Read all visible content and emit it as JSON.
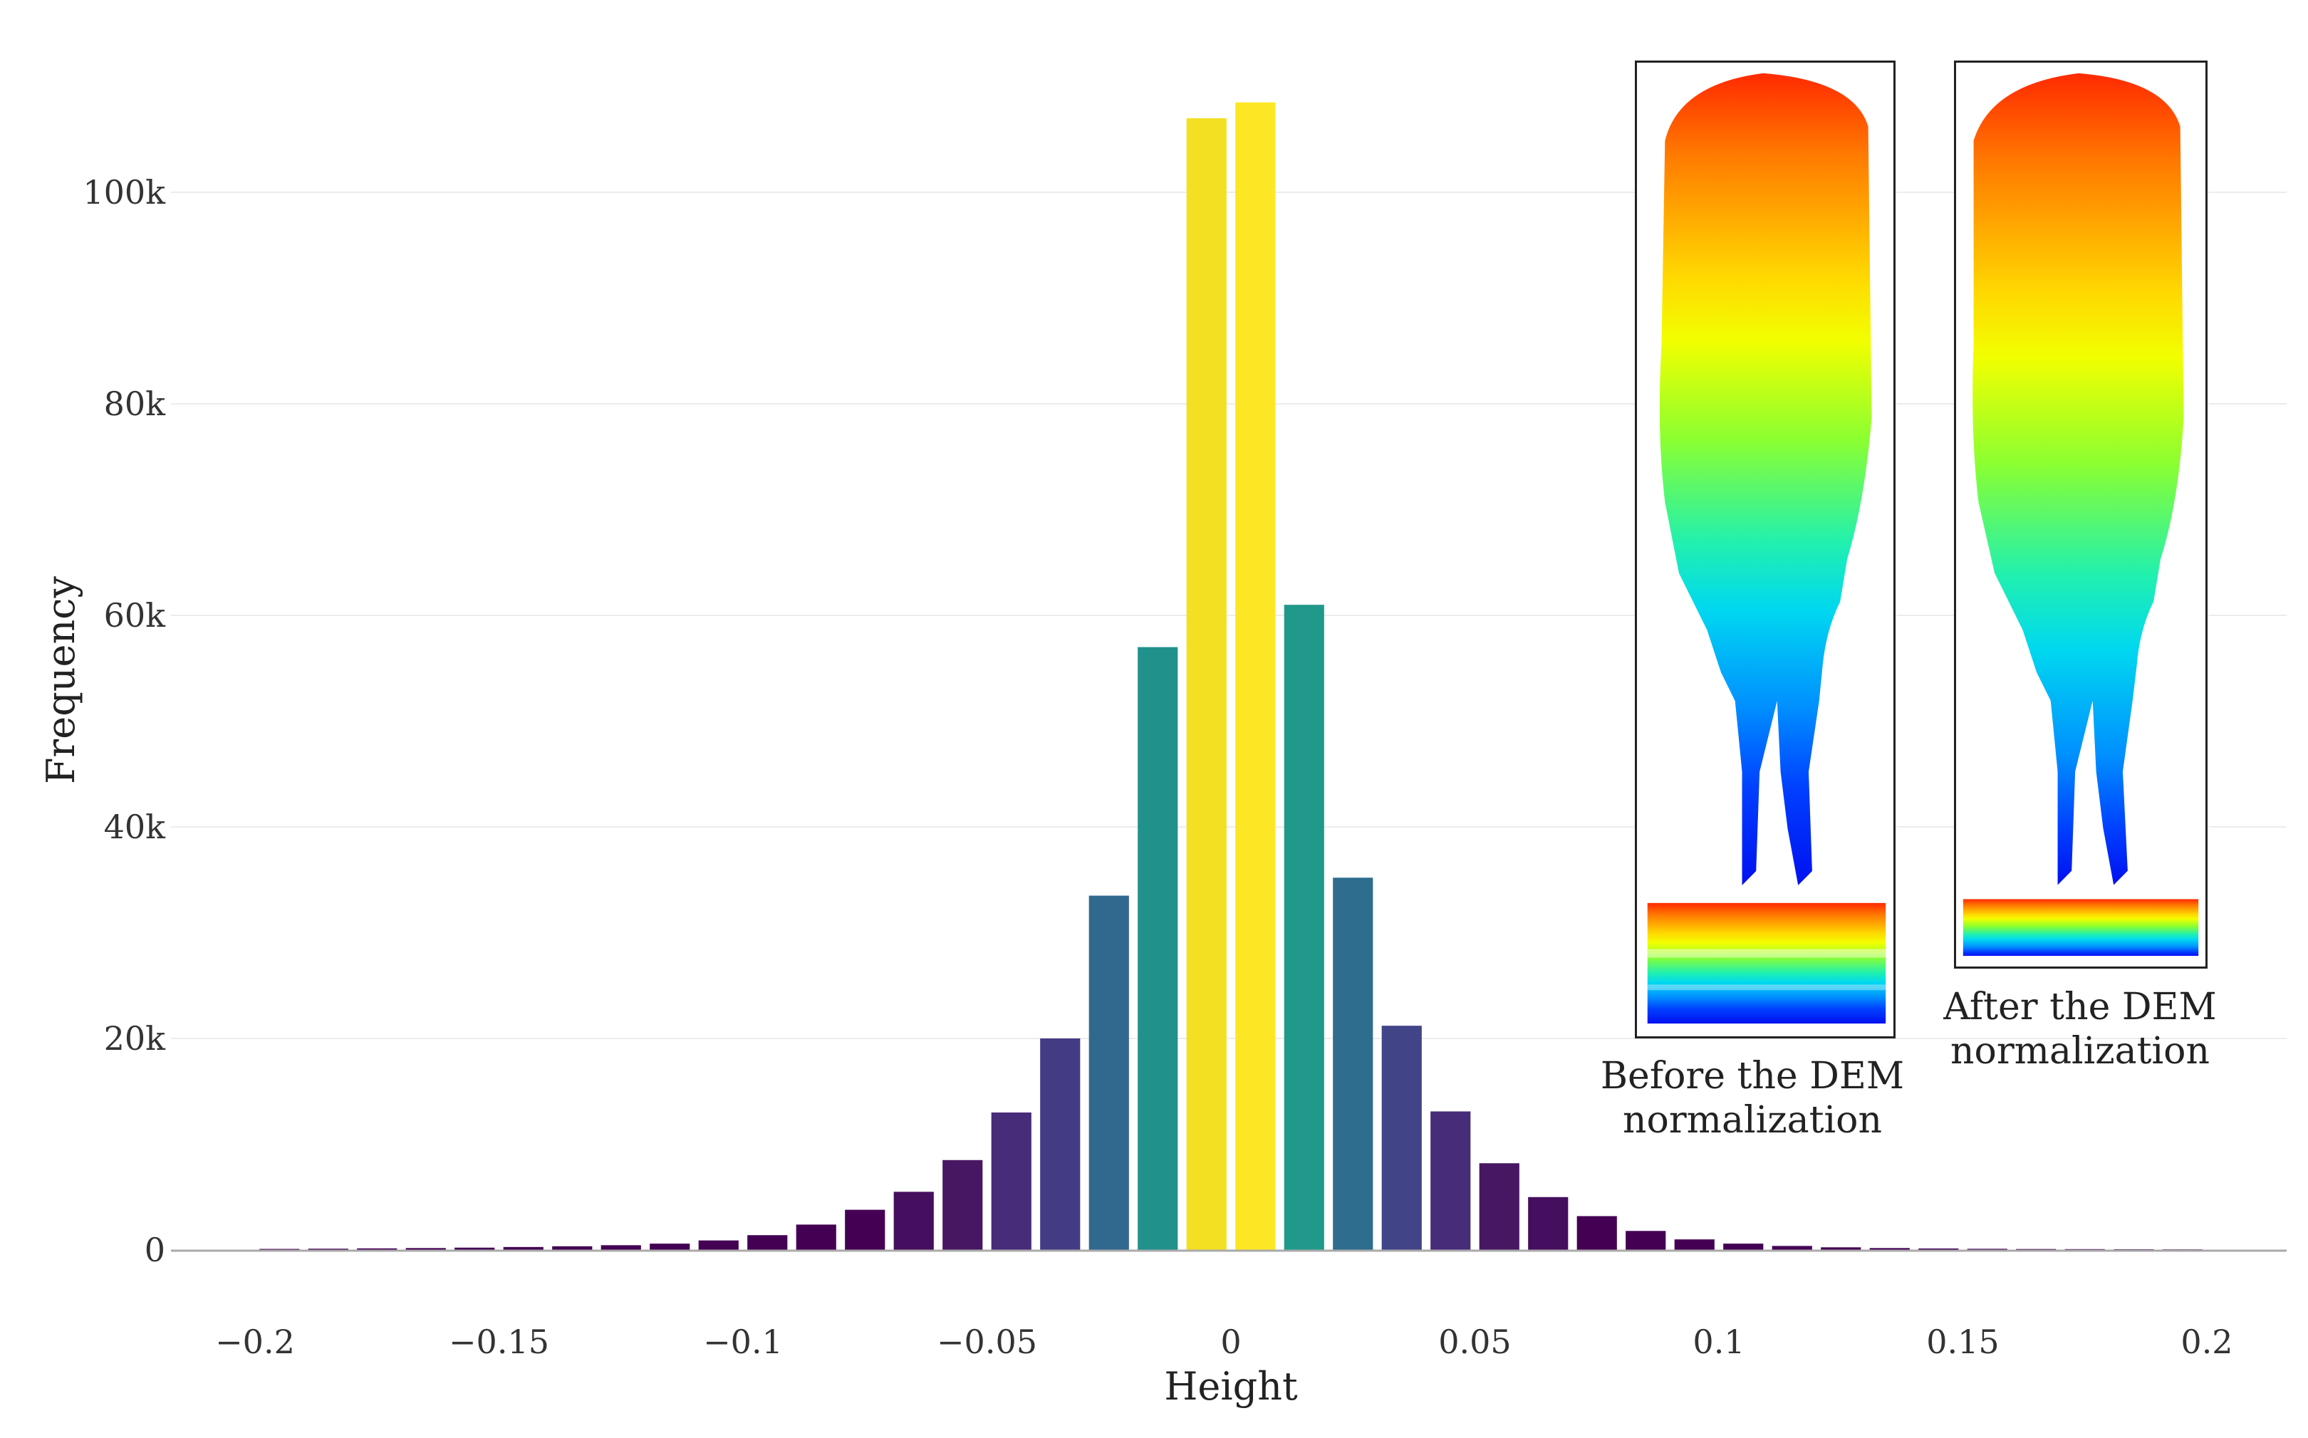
{
  "chart_data": {
    "type": "bar",
    "title": "",
    "xlabel": "Height",
    "ylabel": "Frequency",
    "xlim": [
      -0.22,
      0.22
    ],
    "ylim": [
      0,
      112000
    ],
    "grid": true,
    "bin_width": 0.01,
    "bins": [
      {
        "x": -0.195,
        "value": 100,
        "color": "#440154"
      },
      {
        "x": -0.185,
        "value": 120,
        "color": "#440154"
      },
      {
        "x": -0.175,
        "value": 150,
        "color": "#440154"
      },
      {
        "x": -0.165,
        "value": 180,
        "color": "#440154"
      },
      {
        "x": -0.155,
        "value": 220,
        "color": "#440154"
      },
      {
        "x": -0.145,
        "value": 280,
        "color": "#440154"
      },
      {
        "x": -0.135,
        "value": 350,
        "color": "#440154"
      },
      {
        "x": -0.125,
        "value": 450,
        "color": "#440154"
      },
      {
        "x": -0.115,
        "value": 600,
        "color": "#440154"
      },
      {
        "x": -0.105,
        "value": 900,
        "color": "#440154"
      },
      {
        "x": -0.095,
        "value": 1400,
        "color": "#440154"
      },
      {
        "x": -0.085,
        "value": 2400,
        "color": "#440154"
      },
      {
        "x": -0.075,
        "value": 3800,
        "color": "#440154"
      },
      {
        "x": -0.065,
        "value": 5500,
        "color": "#450e5e"
      },
      {
        "x": -0.055,
        "value": 8500,
        "color": "#471763"
      },
      {
        "x": -0.045,
        "value": 13000,
        "color": "#472c79"
      },
      {
        "x": -0.035,
        "value": 20000,
        "color": "#433c84"
      },
      {
        "x": -0.025,
        "value": 33500,
        "color": "#31688e"
      },
      {
        "x": -0.015,
        "value": 57000,
        "color": "#21918c"
      },
      {
        "x": -0.005,
        "value": 107000,
        "color": "#f4e023"
      },
      {
        "x": 0.005,
        "value": 108500,
        "color": "#fde725"
      },
      {
        "x": 0.015,
        "value": 61000,
        "color": "#21998a"
      },
      {
        "x": 0.025,
        "value": 35200,
        "color": "#2e6d8e"
      },
      {
        "x": 0.035,
        "value": 21200,
        "color": "#414487"
      },
      {
        "x": 0.045,
        "value": 13100,
        "color": "#472c79"
      },
      {
        "x": 0.055,
        "value": 8200,
        "color": "#471763"
      },
      {
        "x": 0.065,
        "value": 5000,
        "color": "#450e5e"
      },
      {
        "x": 0.075,
        "value": 3200,
        "color": "#440154"
      },
      {
        "x": 0.085,
        "value": 1800,
        "color": "#440154"
      },
      {
        "x": 0.095,
        "value": 1000,
        "color": "#440154"
      },
      {
        "x": 0.105,
        "value": 600,
        "color": "#440154"
      },
      {
        "x": 0.115,
        "value": 380,
        "color": "#440154"
      },
      {
        "x": 0.125,
        "value": 250,
        "color": "#440154"
      },
      {
        "x": 0.135,
        "value": 180,
        "color": "#440154"
      },
      {
        "x": 0.145,
        "value": 140,
        "color": "#440154"
      },
      {
        "x": 0.155,
        "value": 110,
        "color": "#440154"
      },
      {
        "x": 0.165,
        "value": 90,
        "color": "#440154"
      },
      {
        "x": 0.175,
        "value": 80,
        "color": "#440154"
      },
      {
        "x": 0.185,
        "value": 70,
        "color": "#440154"
      },
      {
        "x": 0.195,
        "value": 60,
        "color": "#440154"
      }
    ],
    "x_ticks": [
      {
        "value": -0.2,
        "label": "−0.2"
      },
      {
        "value": -0.15,
        "label": "−0.15"
      },
      {
        "value": -0.1,
        "label": "−0.1"
      },
      {
        "value": -0.05,
        "label": "−0.05"
      },
      {
        "value": 0,
        "label": "0"
      },
      {
        "value": 0.05,
        "label": "0.05"
      },
      {
        "value": 0.1,
        "label": "0.1"
      },
      {
        "value": 0.15,
        "label": "0.15"
      },
      {
        "value": 0.2,
        "label": "0.2"
      }
    ],
    "y_ticks": [
      {
        "value": 0,
        "label": "0"
      },
      {
        "value": 20000,
        "label": "20k"
      },
      {
        "value": 40000,
        "label": "40k"
      },
      {
        "value": 60000,
        "label": "60k"
      },
      {
        "value": 80000,
        "label": "80k"
      },
      {
        "value": 100000,
        "label": "100k"
      }
    ],
    "grid_color": "#ececec",
    "axis_color": "#aaaaaa"
  },
  "insets": {
    "before": {
      "caption_line1": "Before the DEM",
      "caption_line2": "normalization"
    },
    "after": {
      "caption_line1": "After the DEM",
      "caption_line2": "normalization"
    }
  }
}
